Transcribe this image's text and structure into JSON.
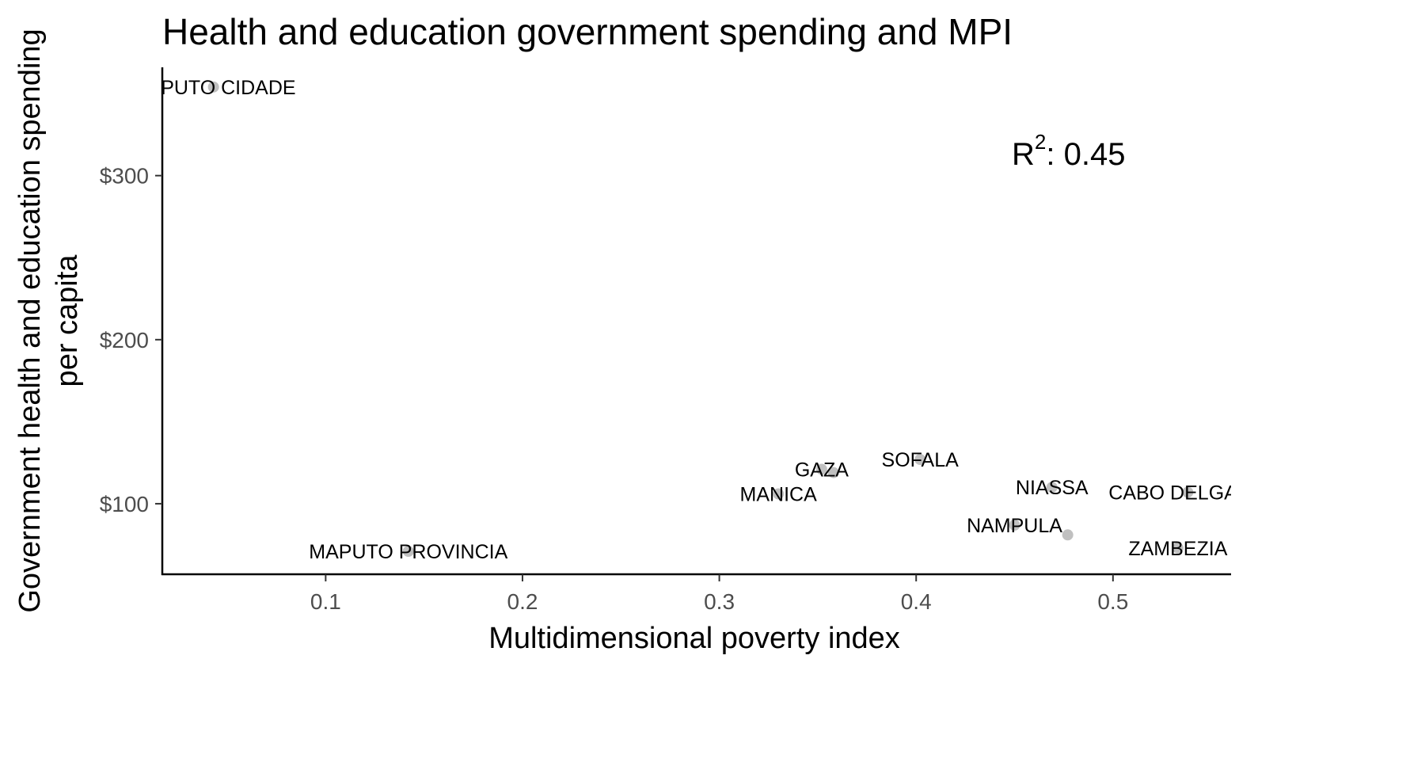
{
  "chart_data": {
    "type": "scatter",
    "title": "Health and education government spending and MPI",
    "xlabel": "Multidimensional poverty index",
    "ylabel_lines": [
      "Government health and education spending",
      "per capita"
    ],
    "xlim": [
      0.017,
      0.56
    ],
    "ylim": [
      57,
      366
    ],
    "x_ticks": [
      0.1,
      0.2,
      0.3,
      0.4,
      0.5
    ],
    "x_tick_labels": [
      "0.1",
      "0.2",
      "0.3",
      "0.4",
      "0.5"
    ],
    "y_ticks": [
      100,
      200,
      300
    ],
    "y_tick_labels": [
      "$100",
      "$200",
      "$300"
    ],
    "grid": false,
    "annotation": {
      "r2_label": "R",
      "r2_sup": "2",
      "r2_value": ": 0.45"
    },
    "point_color": "#c0c0c0",
    "points": [
      {
        "label": "MAPUTO CIDADE",
        "x": 0.043,
        "y": 354
      },
      {
        "label": "MAPUTO PROVINCIA",
        "x": 0.142,
        "y": 71
      },
      {
        "label": "GAZA",
        "x": 0.352,
        "y": 121
      },
      {
        "label": "",
        "x": 0.358,
        "y": 119
      },
      {
        "label": "MANICA",
        "x": 0.33,
        "y": 106
      },
      {
        "label": "SOFALA",
        "x": 0.402,
        "y": 127
      },
      {
        "label": "NIASSA",
        "x": 0.469,
        "y": 110
      },
      {
        "label": "NAMPULA",
        "x": 0.45,
        "y": 87
      },
      {
        "label": "",
        "x": 0.477,
        "y": 81
      },
      {
        "label": "CABO DELGADO",
        "x": 0.538,
        "y": 107
      },
      {
        "label": "ZAMBEZIA",
        "x": 0.533,
        "y": 73
      }
    ]
  }
}
